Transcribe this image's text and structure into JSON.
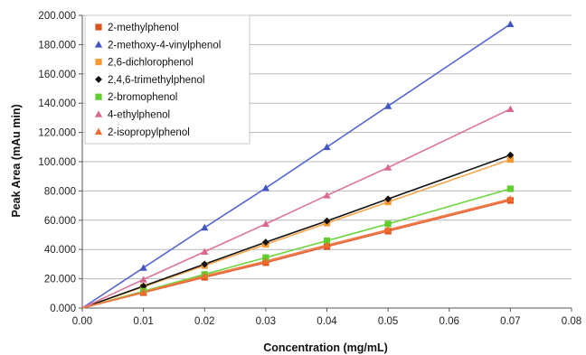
{
  "chart_data": {
    "type": "scatter",
    "xlabel": "Concentration (mg/mL)",
    "ylabel": "Peak Area (mAu min)",
    "xlim": [
      0,
      0.08
    ],
    "ylim": [
      0,
      200000
    ],
    "x_ticks": [
      "0.00",
      "0.01",
      "0.02",
      "0.03",
      "0.04",
      "0.05",
      "0.06",
      "0.07",
      "0.08"
    ],
    "y_ticks": [
      "0.000",
      "20.000",
      "40.000",
      "60.000",
      "80.000",
      "100.000",
      "120.000",
      "140.000",
      "160.000",
      "180.000",
      "200.000"
    ],
    "grid": "horizontal",
    "legend_position": "top-left",
    "x": [
      0,
      0.01,
      0.02,
      0.03,
      0.04,
      0.05,
      0.07
    ],
    "series": [
      {
        "name": "2-methylphenol",
        "marker": "square",
        "color": "#d9531e",
        "line_color": "#e8613a",
        "values": [
          0,
          10500,
          21000,
          31000,
          42000,
          52500,
          73500
        ]
      },
      {
        "name": "2-methoxy-4-vinylphenol",
        "marker": "triangle",
        "color": "#4155c4",
        "line_color": "#5468d0",
        "values": [
          0,
          27500,
          55000,
          82000,
          110000,
          138000,
          194000
        ]
      },
      {
        "name": "2,6-dichlorophenol",
        "marker": "square",
        "color": "#f59a33",
        "line_color": "#f7a64a",
        "values": [
          0,
          14500,
          29000,
          43500,
          58000,
          72500,
          101500
        ]
      },
      {
        "name": "2,4,6-trimethylphenol",
        "marker": "diamond",
        "color": "#111111",
        "line_color": "#111111",
        "values": [
          0,
          15000,
          30000,
          45000,
          59500,
          74500,
          104500
        ]
      },
      {
        "name": "2-bromophenol",
        "marker": "square",
        "color": "#5fcf2f",
        "line_color": "#6ad63a",
        "values": [
          0,
          11500,
          23000,
          34500,
          46000,
          57500,
          81500
        ]
      },
      {
        "name": "4-ethylphenol",
        "marker": "triangle",
        "color": "#d9678f",
        "line_color": "#de7599",
        "values": [
          0,
          19500,
          38500,
          57500,
          77000,
          96000,
          136000
        ]
      },
      {
        "name": "2-isopropylphenol",
        "marker": "triangle",
        "color": "#f06b2e",
        "line_color": "#f27a42",
        "values": [
          0,
          11000,
          22000,
          32000,
          43000,
          53500,
          74500
        ]
      }
    ]
  }
}
